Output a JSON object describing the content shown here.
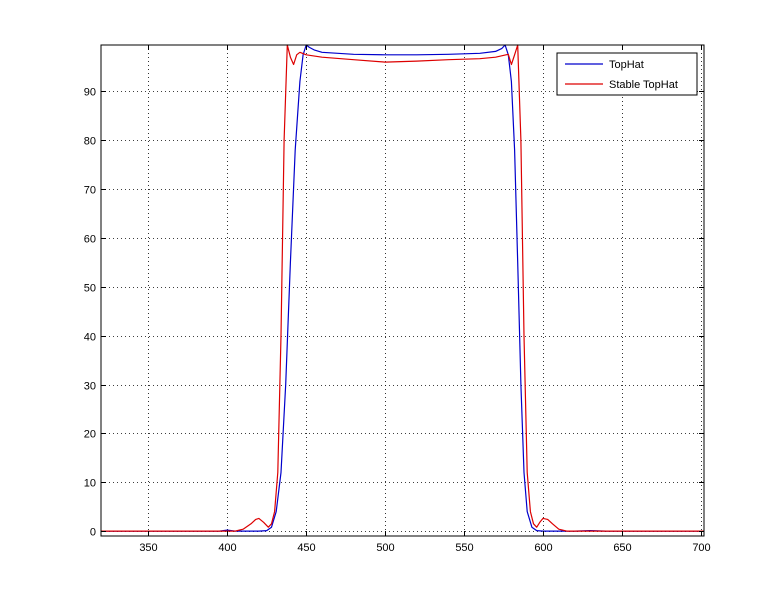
{
  "chart_data": {
    "type": "line",
    "title": "",
    "xlabel": "",
    "ylabel": "",
    "xlim": [
      320,
      702
    ],
    "ylim": [
      -1,
      99.5
    ],
    "xticks": [
      350,
      400,
      450,
      500,
      550,
      600,
      650,
      700
    ],
    "yticks": [
      0,
      10,
      20,
      30,
      40,
      50,
      60,
      70,
      80,
      90
    ],
    "xtick_labels": [
      "350",
      "400",
      "450",
      "500",
      "550",
      "600",
      "650",
      "700"
    ],
    "ytick_labels": [
      "0",
      "10",
      "20",
      "30",
      "40",
      "50",
      "60",
      "70",
      "80",
      "90"
    ],
    "grid": true,
    "legend_position": "top-right",
    "series": [
      {
        "name": "TopHat",
        "color": "#0000cc",
        "x": [
          320,
          395,
          400,
          405,
          410,
          415,
          420,
          425,
          428,
          431,
          434,
          437,
          440,
          443,
          446,
          448,
          450,
          452,
          455,
          460,
          470,
          480,
          500,
          520,
          540,
          560,
          570,
          574,
          576,
          578,
          580,
          582,
          584,
          586,
          588,
          590,
          593,
          596,
          600,
          605,
          610,
          620,
          630,
          640,
          702
        ],
        "y": [
          0,
          0,
          0.2,
          0,
          0,
          0,
          0,
          0.1,
          0.8,
          4,
          12,
          30,
          55,
          78,
          92,
          97.5,
          99.5,
          99,
          98.5,
          98,
          97.8,
          97.6,
          97.5,
          97.5,
          97.6,
          97.8,
          98.2,
          98.8,
          99.5,
          97.5,
          92,
          78,
          55,
          30,
          12,
          4,
          0.8,
          0.1,
          0,
          0,
          0,
          0,
          0.1,
          0,
          0
        ]
      },
      {
        "name": "Stable TopHat",
        "color": "#dd0000",
        "x": [
          320,
          405,
          410,
          415,
          418,
          420,
          423,
          426,
          428,
          430,
          432,
          434,
          436,
          438,
          440,
          442,
          444,
          446,
          450,
          460,
          480,
          500,
          520,
          540,
          560,
          570,
          578,
          580,
          582,
          584,
          586,
          588,
          590,
          592,
          594,
          596,
          598,
          600,
          603,
          606,
          610,
          615,
          620,
          702
        ],
        "y": [
          0,
          0,
          0.4,
          1.5,
          2.4,
          2.6,
          1.8,
          0.8,
          1.5,
          4,
          12,
          40,
          80,
          99.5,
          97,
          95.5,
          97.5,
          98,
          97.5,
          97,
          96.5,
          96,
          96.2,
          96.5,
          96.7,
          97,
          97.6,
          95.5,
          97.5,
          99.5,
          80,
          40,
          12,
          4,
          1.5,
          0.8,
          1.8,
          2.6,
          2.4,
          1.5,
          0.4,
          0,
          0,
          0
        ]
      }
    ]
  }
}
